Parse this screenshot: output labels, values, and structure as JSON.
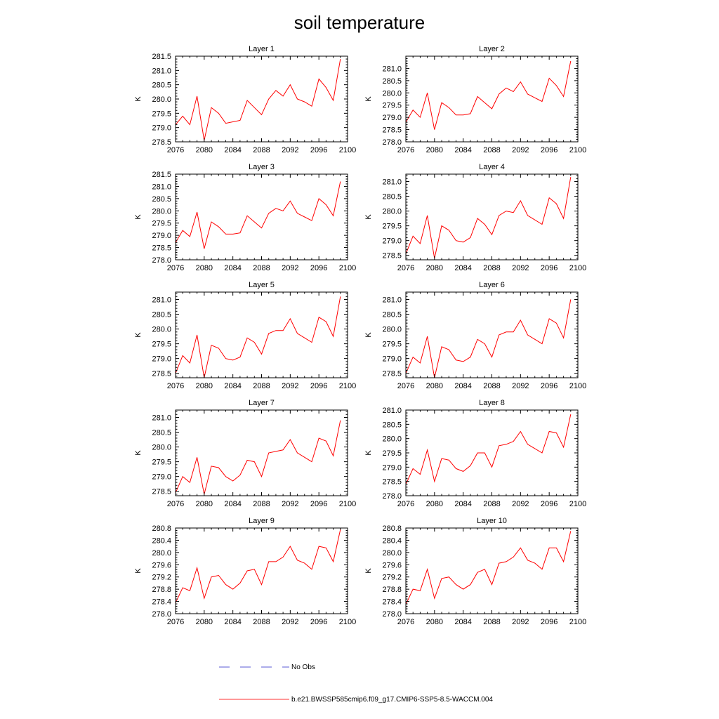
{
  "title": "soil temperature",
  "legend": [
    {
      "label": "No Obs",
      "color": "#5a5ad6",
      "style": "dashed"
    },
    {
      "label": "b.e21.BWSSP585cmip6.f09_g17.CMIP6-SSP5-8.5-WACCM.004",
      "color": "#ff3030",
      "style": "solid"
    }
  ],
  "chart_data": [
    {
      "type": "line",
      "title": "Layer 1",
      "xlabel": "",
      "ylabel": "K",
      "xlim": [
        2076,
        2100
      ],
      "ylim": [
        278.5,
        281.5
      ],
      "xticks": [
        2076,
        2080,
        2084,
        2088,
        2092,
        2096,
        2100
      ],
      "yticks": [
        "278.5",
        "279.0",
        "279.5",
        "280.0",
        "280.5",
        "281.0",
        "281.5"
      ],
      "series": [
        {
          "color": "#ff0000",
          "x": [
            2075,
            2076,
            2077,
            2078,
            2079,
            2080,
            2081,
            2082,
            2083,
            2084,
            2085,
            2086,
            2087,
            2088,
            2089,
            2090,
            2091,
            2092,
            2093,
            2094,
            2095,
            2096,
            2097,
            2098,
            2099
          ],
          "y": [
            278.8,
            279.1,
            279.4,
            279.1,
            280.1,
            278.55,
            279.7,
            279.5,
            279.15,
            279.2,
            279.25,
            279.95,
            279.7,
            279.45,
            280.0,
            280.3,
            280.1,
            280.5,
            280.0,
            279.9,
            279.75,
            280.7,
            280.4,
            279.95,
            281.4
          ]
        }
      ]
    },
    {
      "type": "line",
      "title": "Layer 2",
      "xlabel": "",
      "ylabel": "K",
      "xlim": [
        2076,
        2100
      ],
      "ylim": [
        278.0,
        281.5
      ],
      "xticks": [
        2076,
        2080,
        2084,
        2088,
        2092,
        2096,
        2100
      ],
      "yticks": [
        "278.0",
        "278.5",
        "279.0",
        "279.5",
        "280.0",
        "280.5",
        "281.0"
      ],
      "series": [
        {
          "color": "#ff0000",
          "x": [
            2075,
            2076,
            2077,
            2078,
            2079,
            2080,
            2081,
            2082,
            2083,
            2084,
            2085,
            2086,
            2087,
            2088,
            2089,
            2090,
            2091,
            2092,
            2093,
            2094,
            2095,
            2096,
            2097,
            2098,
            2099
          ],
          "y": [
            278.7,
            278.8,
            279.3,
            279.0,
            280.0,
            278.5,
            279.6,
            279.4,
            279.1,
            279.1,
            279.15,
            279.85,
            279.6,
            279.35,
            279.95,
            280.2,
            280.05,
            280.45,
            279.95,
            279.8,
            279.65,
            280.6,
            280.3,
            279.85,
            281.3
          ]
        }
      ]
    },
    {
      "type": "line",
      "title": "Layer 3",
      "xlabel": "",
      "ylabel": "K",
      "xlim": [
        2076,
        2100
      ],
      "ylim": [
        278.0,
        281.5
      ],
      "xticks": [
        2076,
        2080,
        2084,
        2088,
        2092,
        2096,
        2100
      ],
      "yticks": [
        "278.0",
        "278.5",
        "279.0",
        "279.5",
        "280.0",
        "280.5",
        "281.0",
        "281.5"
      ],
      "series": [
        {
          "color": "#ff0000",
          "x": [
            2075,
            2076,
            2077,
            2078,
            2079,
            2080,
            2081,
            2082,
            2083,
            2084,
            2085,
            2086,
            2087,
            2088,
            2089,
            2090,
            2091,
            2092,
            2093,
            2094,
            2095,
            2096,
            2097,
            2098,
            2099
          ],
          "y": [
            278.6,
            278.7,
            279.2,
            278.95,
            279.95,
            278.45,
            279.55,
            279.35,
            279.05,
            279.05,
            279.1,
            279.8,
            279.55,
            279.3,
            279.9,
            280.1,
            280.0,
            280.4,
            279.9,
            279.75,
            279.6,
            280.5,
            280.25,
            279.8,
            281.2
          ]
        }
      ]
    },
    {
      "type": "line",
      "title": "Layer 4",
      "xlabel": "",
      "ylabel": "K",
      "xlim": [
        2076,
        2100
      ],
      "ylim": [
        278.35,
        281.25
      ],
      "xticks": [
        2076,
        2080,
        2084,
        2088,
        2092,
        2096,
        2100
      ],
      "yticks": [
        "278.5",
        "279.0",
        "279.5",
        "280.0",
        "280.5",
        "281.0"
      ],
      "series": [
        {
          "color": "#ff0000",
          "x": [
            2075,
            2076,
            2077,
            2078,
            2079,
            2080,
            2081,
            2082,
            2083,
            2084,
            2085,
            2086,
            2087,
            2088,
            2089,
            2090,
            2091,
            2092,
            2093,
            2094,
            2095,
            2096,
            2097,
            2098,
            2099
          ],
          "y": [
            278.45,
            278.55,
            279.15,
            278.9,
            279.85,
            278.4,
            279.5,
            279.35,
            279.0,
            278.95,
            279.1,
            279.75,
            279.55,
            279.2,
            279.85,
            280.0,
            279.95,
            280.35,
            279.85,
            279.7,
            279.55,
            280.45,
            280.25,
            279.75,
            281.15
          ]
        }
      ]
    },
    {
      "type": "line",
      "title": "Layer 5",
      "xlabel": "",
      "ylabel": "K",
      "xlim": [
        2076,
        2100
      ],
      "ylim": [
        278.35,
        281.25
      ],
      "xticks": [
        2076,
        2080,
        2084,
        2088,
        2092,
        2096,
        2100
      ],
      "yticks": [
        "278.5",
        "279.0",
        "279.5",
        "280.0",
        "280.5",
        "281.0"
      ],
      "series": [
        {
          "color": "#ff0000",
          "x": [
            2075,
            2076,
            2077,
            2078,
            2079,
            2080,
            2081,
            2082,
            2083,
            2084,
            2085,
            2086,
            2087,
            2088,
            2089,
            2090,
            2091,
            2092,
            2093,
            2094,
            2095,
            2096,
            2097,
            2098,
            2099
          ],
          "y": [
            278.45,
            278.5,
            279.1,
            278.85,
            279.8,
            278.35,
            279.45,
            279.35,
            279.0,
            278.95,
            279.05,
            279.7,
            279.55,
            279.15,
            279.85,
            279.95,
            279.95,
            280.35,
            279.85,
            279.7,
            279.55,
            280.4,
            280.25,
            279.75,
            281.1
          ]
        }
      ]
    },
    {
      "type": "line",
      "title": "Layer 6",
      "xlabel": "",
      "ylabel": "K",
      "xlim": [
        2076,
        2100
      ],
      "ylim": [
        278.35,
        281.25
      ],
      "xticks": [
        2076,
        2080,
        2084,
        2088,
        2092,
        2096,
        2100
      ],
      "yticks": [
        "278.5",
        "279.0",
        "279.5",
        "280.0",
        "280.5",
        "281.0"
      ],
      "series": [
        {
          "color": "#ff0000",
          "x": [
            2075,
            2076,
            2077,
            2078,
            2079,
            2080,
            2081,
            2082,
            2083,
            2084,
            2085,
            2086,
            2087,
            2088,
            2089,
            2090,
            2091,
            2092,
            2093,
            2094,
            2095,
            2096,
            2097,
            2098,
            2099
          ],
          "y": [
            278.4,
            278.5,
            279.05,
            278.85,
            279.75,
            278.35,
            279.4,
            279.3,
            278.95,
            278.9,
            279.05,
            279.65,
            279.5,
            279.05,
            279.8,
            279.9,
            279.9,
            280.3,
            279.8,
            279.65,
            279.5,
            280.35,
            280.2,
            279.7,
            281.0
          ]
        }
      ]
    },
    {
      "type": "line",
      "title": "Layer 7",
      "xlabel": "",
      "ylabel": "K",
      "xlim": [
        2076,
        2100
      ],
      "ylim": [
        278.35,
        281.25
      ],
      "xticks": [
        2076,
        2080,
        2084,
        2088,
        2092,
        2096,
        2100
      ],
      "yticks": [
        "278.5",
        "279.0",
        "279.5",
        "280.0",
        "280.5",
        "281.0"
      ],
      "series": [
        {
          "color": "#ff0000",
          "x": [
            2075,
            2076,
            2077,
            2078,
            2079,
            2080,
            2081,
            2082,
            2083,
            2084,
            2085,
            2086,
            2087,
            2088,
            2089,
            2090,
            2091,
            2092,
            2093,
            2094,
            2095,
            2096,
            2097,
            2098,
            2099
          ],
          "y": [
            278.35,
            278.45,
            279.0,
            278.8,
            279.65,
            278.4,
            279.35,
            279.3,
            279.0,
            278.85,
            279.05,
            279.55,
            279.5,
            279.0,
            279.8,
            279.85,
            279.9,
            280.25,
            279.8,
            279.65,
            279.5,
            280.3,
            280.2,
            279.7,
            280.9
          ]
        }
      ]
    },
    {
      "type": "line",
      "title": "Layer 8",
      "xlabel": "",
      "ylabel": "K",
      "xlim": [
        2076,
        2100
      ],
      "ylim": [
        278.0,
        281.0
      ],
      "xticks": [
        2076,
        2080,
        2084,
        2088,
        2092,
        2096,
        2100
      ],
      "yticks": [
        "278.0",
        "278.5",
        "279.0",
        "279.5",
        "280.0",
        "280.5",
        "281.0"
      ],
      "series": [
        {
          "color": "#ff0000",
          "x": [
            2075,
            2076,
            2077,
            2078,
            2079,
            2080,
            2081,
            2082,
            2083,
            2084,
            2085,
            2086,
            2087,
            2088,
            2089,
            2090,
            2091,
            2092,
            2093,
            2094,
            2095,
            2096,
            2097,
            2098,
            2099
          ],
          "y": [
            278.3,
            278.4,
            278.95,
            278.75,
            279.6,
            278.5,
            279.3,
            279.25,
            278.95,
            278.85,
            279.05,
            279.5,
            279.5,
            279.0,
            279.75,
            279.8,
            279.9,
            280.25,
            279.8,
            279.65,
            279.5,
            280.25,
            280.2,
            279.7,
            280.85
          ]
        }
      ]
    },
    {
      "type": "line",
      "title": "Layer 9",
      "xlabel": "",
      "ylabel": "K",
      "xlim": [
        2076,
        2100
      ],
      "ylim": [
        278.0,
        280.8
      ],
      "xticks": [
        2076,
        2080,
        2084,
        2088,
        2092,
        2096,
        2100
      ],
      "yticks": [
        "278.0",
        "278.4",
        "278.8",
        "279.2",
        "279.6",
        "280.0",
        "280.4",
        "280.8"
      ],
      "series": [
        {
          "color": "#ff0000",
          "x": [
            2075,
            2076,
            2077,
            2078,
            2079,
            2080,
            2081,
            2082,
            2083,
            2084,
            2085,
            2086,
            2087,
            2088,
            2089,
            2090,
            2091,
            2092,
            2093,
            2094,
            2095,
            2096,
            2097,
            2098,
            2099
          ],
          "y": [
            278.2,
            278.35,
            278.85,
            278.75,
            279.5,
            278.5,
            279.2,
            279.25,
            278.95,
            278.8,
            279.0,
            279.4,
            279.45,
            278.95,
            279.7,
            279.7,
            279.85,
            280.2,
            279.75,
            279.65,
            279.45,
            280.2,
            280.15,
            279.7,
            280.75
          ]
        }
      ]
    },
    {
      "type": "line",
      "title": "Layer 10",
      "xlabel": "",
      "ylabel": "K",
      "xlim": [
        2076,
        2100
      ],
      "ylim": [
        278.0,
        280.8
      ],
      "xticks": [
        2076,
        2080,
        2084,
        2088,
        2092,
        2096,
        2100
      ],
      "yticks": [
        "278.0",
        "278.4",
        "278.8",
        "279.2",
        "279.6",
        "280.0",
        "280.4",
        "280.8"
      ],
      "series": [
        {
          "color": "#ff0000",
          "x": [
            2075,
            2076,
            2077,
            2078,
            2079,
            2080,
            2081,
            2082,
            2083,
            2084,
            2085,
            2086,
            2087,
            2088,
            2089,
            2090,
            2091,
            2092,
            2093,
            2094,
            2095,
            2096,
            2097,
            2098,
            2099
          ],
          "y": [
            278.2,
            278.3,
            278.8,
            278.75,
            279.45,
            278.5,
            279.15,
            279.2,
            278.95,
            278.8,
            278.95,
            279.35,
            279.45,
            278.95,
            279.65,
            279.7,
            279.85,
            280.15,
            279.75,
            279.65,
            279.45,
            280.15,
            280.15,
            279.7,
            280.7
          ]
        }
      ]
    }
  ]
}
